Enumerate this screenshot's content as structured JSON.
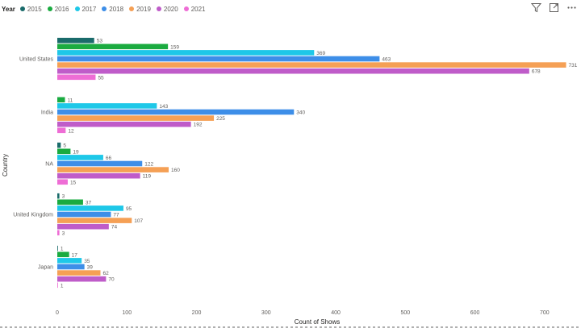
{
  "legend": {
    "title": "Year",
    "items": [
      {
        "label": "2015",
        "color": "#1a6b6b"
      },
      {
        "label": "2016",
        "color": "#1aab40"
      },
      {
        "label": "2017",
        "color": "#1ec8e8"
      },
      {
        "label": "2018",
        "color": "#3d8ee8"
      },
      {
        "label": "2019",
        "color": "#f5a055"
      },
      {
        "label": "2020",
        "color": "#bf5cc9"
      },
      {
        "label": "2021",
        "color": "#ee6dd5"
      }
    ]
  },
  "toolbar": {
    "filter_icon": "filter-icon",
    "focus_icon": "focus-mode-icon",
    "more_icon": "more-options-icon"
  },
  "chart_data": {
    "type": "bar",
    "orientation": "horizontal",
    "categories": [
      "United States",
      "India",
      "NA",
      "United Kingdom",
      "Japan"
    ],
    "series": [
      {
        "name": "2015",
        "values": [
          53,
          null,
          5,
          3,
          1
        ]
      },
      {
        "name": "2016",
        "values": [
          159,
          11,
          19,
          37,
          17
        ]
      },
      {
        "name": "2017",
        "values": [
          369,
          143,
          66,
          95,
          35
        ]
      },
      {
        "name": "2018",
        "values": [
          463,
          340,
          122,
          77,
          39
        ]
      },
      {
        "name": "2019",
        "values": [
          731,
          225,
          160,
          107,
          62
        ]
      },
      {
        "name": "2020",
        "values": [
          678,
          192,
          119,
          74,
          70
        ]
      },
      {
        "name": "2021",
        "values": [
          55,
          12,
          15,
          3,
          1
        ]
      }
    ],
    "xlabel": "Count of Shows",
    "ylabel": "Country",
    "xticks": [
      0,
      100,
      200,
      300,
      400,
      500,
      600,
      700
    ],
    "xlim": [
      0,
      735
    ],
    "legend_position": "top-left"
  }
}
